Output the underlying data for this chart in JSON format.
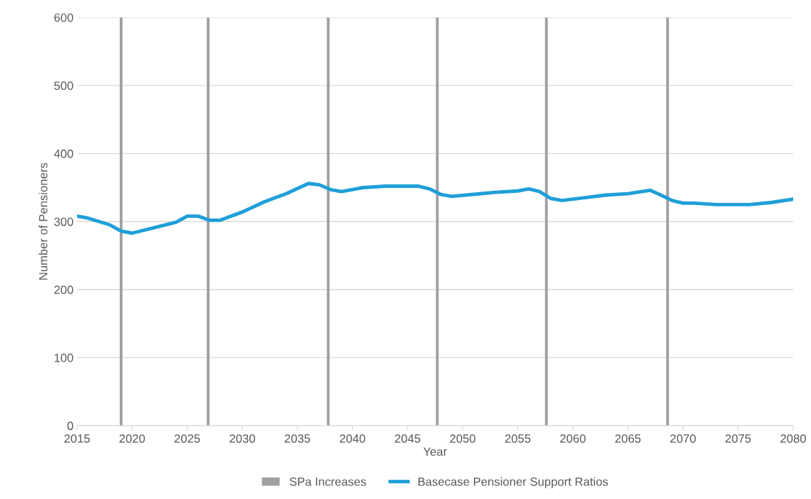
{
  "chart_data": {
    "type": "line",
    "xlabel": "Year",
    "ylabel": "Number of Pensioners",
    "xlim": [
      2015,
      2080
    ],
    "xticks": [
      2015,
      2020,
      2025,
      2030,
      2035,
      2040,
      2045,
      2050,
      2055,
      2060,
      2065,
      2070,
      2075,
      2080
    ],
    "ylim": [
      0,
      600
    ],
    "yticks": [
      0,
      100,
      200,
      300,
      400,
      500,
      600
    ],
    "grid": "y",
    "legend": "bottom",
    "marker": "none",
    "line_style": "solid",
    "series": [
      {
        "name": "SPa Increases",
        "type": "bar",
        "color": "#a0a0a0",
        "x": [
          2019,
          2026.9,
          2037.8,
          2047.7,
          2057.6,
          2068.6
        ],
        "values": [
          600,
          600,
          600,
          600,
          600,
          600
        ]
      },
      {
        "name": "Basecase Pensioner Support Ratios",
        "color": "#1f9fd8",
        "x": [
          2015,
          2016,
          2018,
          2019,
          2020,
          2022,
          2024,
          2025,
          2026,
          2027,
          2028,
          2030,
          2032,
          2034,
          2036,
          2037,
          2038,
          2039,
          2041,
          2043,
          2045,
          2046,
          2047,
          2048,
          2049,
          2051,
          2053,
          2055,
          2056,
          2057,
          2058,
          2059,
          2061,
          2063,
          2065,
          2067,
          2068,
          2069,
          2070,
          2071,
          2073,
          2076,
          2078,
          2080
        ],
        "values": [
          308,
          305,
          295,
          286,
          283,
          291,
          299,
          308,
          308,
          302,
          302,
          314,
          329,
          341,
          356,
          354,
          347,
          344,
          350,
          352,
          352,
          352,
          348,
          340,
          337,
          340,
          343,
          345,
          348,
          344,
          334,
          331,
          335,
          339,
          341,
          346,
          339,
          331,
          327,
          327,
          325,
          325,
          328,
          333
        ]
      }
    ]
  }
}
